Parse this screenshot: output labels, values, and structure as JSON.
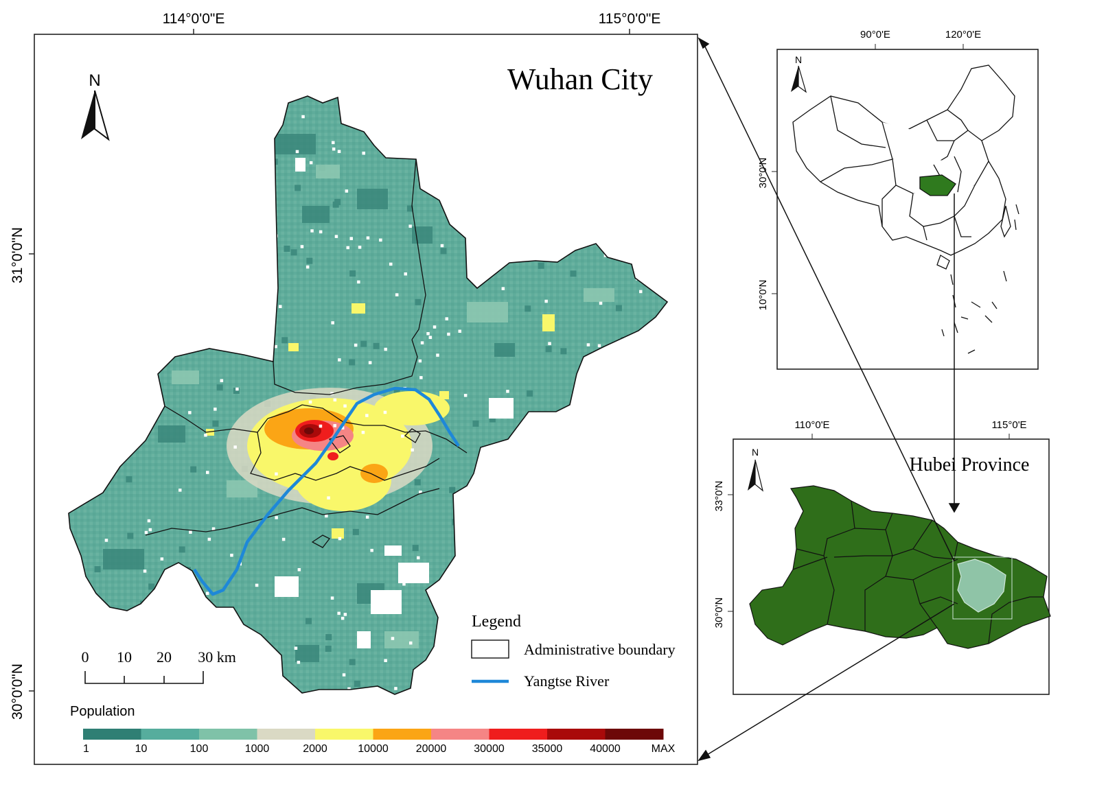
{
  "main_map": {
    "title": "Wuhan City",
    "north_label": "N",
    "top_lon_labels": [
      "114°0'0\"E",
      "115°0'0\"E"
    ],
    "left_lat_labels": [
      "31°0'0\"N",
      "30°0'0\"N"
    ],
    "scale_bar": {
      "labels": [
        "0",
        "10",
        "20",
        "30 km"
      ]
    },
    "legend": {
      "title": "Legend",
      "items": [
        {
          "label": "Administrative boundary",
          "symbol": "box"
        },
        {
          "label": "Yangtse River",
          "symbol": "line",
          "color": "#1e88d8"
        }
      ]
    },
    "population": {
      "title": "Population",
      "colors": [
        "#2f7f74",
        "#56ad9d",
        "#7fc2a8",
        "#dad9c4",
        "#f9f76a",
        "#fba515",
        "#f58585",
        "#ef1d1d",
        "#a90a0a",
        "#6d0808"
      ],
      "breaks": [
        "1",
        "10",
        "100",
        "1000",
        "2000",
        "10000",
        "20000",
        "30000",
        "35000",
        "40000",
        "MAX"
      ]
    },
    "colors": {
      "base": "#5fac9b",
      "dark": "#3a877b",
      "light": "#8cc6b0",
      "river": "#1e88d8"
    }
  },
  "china_inset": {
    "north_label": "N",
    "lon_labels": [
      "90°0'E",
      "120°0'E"
    ],
    "lat_labels": [
      "30°0'N",
      "10°0'N"
    ],
    "highlight_color": "#2f7a1e"
  },
  "hubei_inset": {
    "title": "Hubei Province",
    "north_label": "N",
    "lon_labels": [
      "110°0'E",
      "115°0'E"
    ],
    "lat_labels": [
      "33°0'N",
      "30°0'N"
    ],
    "province_color": "#2f6e1a",
    "wuhan_color": "#8fc4a7"
  }
}
